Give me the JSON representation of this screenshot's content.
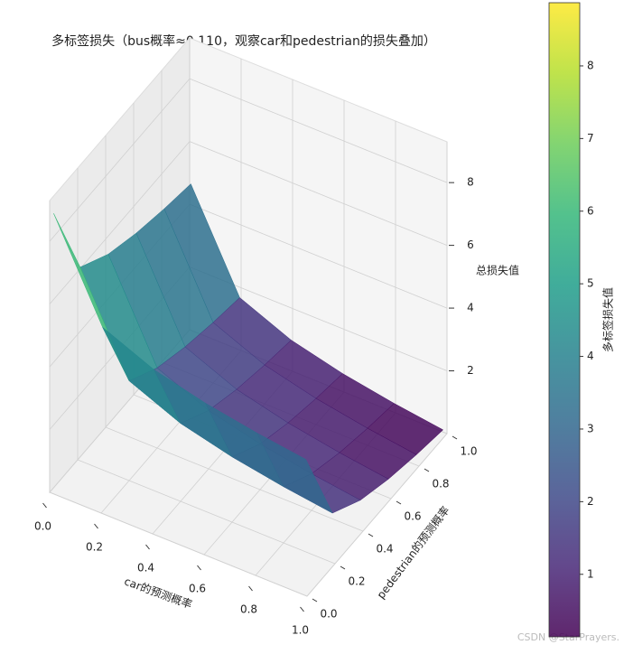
{
  "chart_data": {
    "type": "surface",
    "title": "多标签损失（bus概率≈0.110，观察car和pedestrian的损失叠加）",
    "x_label": "car的预测概率",
    "y_label": "pedestrian的预测概率",
    "z_label": "总损失值",
    "colorbar_label": "多标签损失值",
    "colormap": "viridis",
    "watermark": "CSDN @StarPrayers.",
    "x": [
      0.01,
      0.2,
      0.4,
      0.6,
      0.8,
      0.99
    ],
    "y": [
      0.01,
      0.2,
      0.4,
      0.6,
      0.8,
      0.99
    ],
    "z": [
      [
        8.87,
        5.874,
        5.181,
        4.776,
        4.488,
        4.275
      ],
      [
        6.174,
        3.178,
        2.485,
        2.08,
        1.792,
        1.579
      ],
      [
        5.55,
        2.554,
        1.861,
        1.456,
        1.168,
        0.955
      ],
      [
        5.185,
        2.189,
        1.496,
        1.091,
        0.803,
        0.59
      ],
      [
        4.926,
        1.93,
        1.237,
        0.832,
        0.544,
        0.331
      ],
      [
        4.734,
        1.738,
        1.045,
        0.64,
        0.352,
        0.139
      ]
    ],
    "xlim": [
      0,
      1
    ],
    "ylim": [
      0,
      1
    ],
    "zlim": [
      0,
      9.3
    ],
    "clim": [
      0.139,
      8.87
    ],
    "xticks": [
      {
        "value": 0,
        "label": "0.0"
      },
      0.2,
      0.4,
      0.6,
      0.8,
      {
        "value": 1,
        "label": "1.0"
      }
    ],
    "yticks": [
      {
        "value": 0,
        "label": "0.0"
      },
      0.2,
      0.4,
      0.6,
      0.8,
      {
        "value": 1,
        "label": "1.0"
      }
    ],
    "zticks": [
      2,
      4,
      6,
      8
    ],
    "cticks": [
      1,
      2,
      3,
      4,
      5,
      6,
      7,
      8
    ],
    "grid": true
  }
}
